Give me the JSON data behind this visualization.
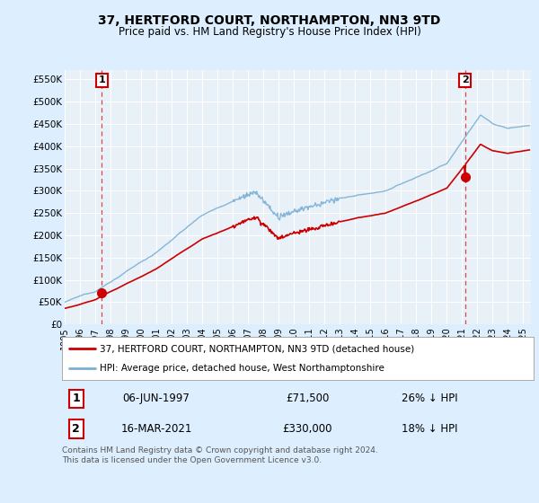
{
  "title": "37, HERTFORD COURT, NORTHAMPTON, NN3 9TD",
  "subtitle": "Price paid vs. HM Land Registry's House Price Index (HPI)",
  "ylabel_ticks": [
    "£0",
    "£50K",
    "£100K",
    "£150K",
    "£200K",
    "£250K",
    "£300K",
    "£350K",
    "£400K",
    "£450K",
    "£500K",
    "£550K"
  ],
  "ytick_values": [
    0,
    50000,
    100000,
    150000,
    200000,
    250000,
    300000,
    350000,
    400000,
    450000,
    500000,
    550000
  ],
  "ylim": [
    0,
    570000
  ],
  "xlim_start": 1995.0,
  "xlim_end": 2025.5,
  "sale1_x": 1997.43,
  "sale1_y": 71500,
  "sale1_label": "1",
  "sale1_date": "06-JUN-1997",
  "sale1_price": "£71,500",
  "sale1_hpi": "26% ↓ HPI",
  "sale2_x": 2021.2,
  "sale2_y": 330000,
  "sale2_label": "2",
  "sale2_date": "16-MAR-2021",
  "sale2_price": "£330,000",
  "sale2_hpi": "18% ↓ HPI",
  "legend_label_red": "37, HERTFORD COURT, NORTHAMPTON, NN3 9TD (detached house)",
  "legend_label_blue": "HPI: Average price, detached house, West Northamptonshire",
  "footnote": "Contains HM Land Registry data © Crown copyright and database right 2024.\nThis data is licensed under the Open Government Licence v3.0.",
  "red_color": "#cc0000",
  "blue_color": "#7ab0d4",
  "bg_color": "#ddeeff",
  "plot_bg": "#e8f0f8",
  "grid_color": "#ffffff",
  "dashed_line_color": "#cc0000"
}
